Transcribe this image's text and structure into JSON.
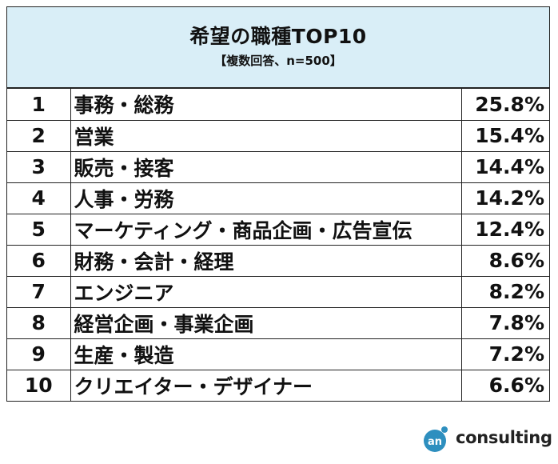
{
  "header": {
    "title": "希望の職種TOP10",
    "subtitle": "【複数回答、n=500】"
  },
  "rows": [
    {
      "rank": "1",
      "job": "事務・総務",
      "pct": "25.8%"
    },
    {
      "rank": "2",
      "job": "営業",
      "pct": "15.4%"
    },
    {
      "rank": "3",
      "job": "販売・接客",
      "pct": "14.4%"
    },
    {
      "rank": "4",
      "job": "人事・労務",
      "pct": "14.2%"
    },
    {
      "rank": "5",
      "job": "マーケティング・商品企画・広告宣伝",
      "pct": "12.4%"
    },
    {
      "rank": "6",
      "job": "財務・会計・経理",
      "pct": "8.6%"
    },
    {
      "rank": "7",
      "job": "エンジニア",
      "pct": "8.2%"
    },
    {
      "rank": "8",
      "job": "経営企画・事業企画",
      "pct": "7.8%"
    },
    {
      "rank": "9",
      "job": "生産・製造",
      "pct": "7.2%"
    },
    {
      "rank": "10",
      "job": "クリエイター・デザイナー",
      "pct": "6.6%"
    }
  ],
  "logo": {
    "mark": "an",
    "text": "consulting",
    "brand_color": "#2e8fbf"
  },
  "colors": {
    "header_bg": "#d9eef7",
    "border": "#222222"
  }
}
